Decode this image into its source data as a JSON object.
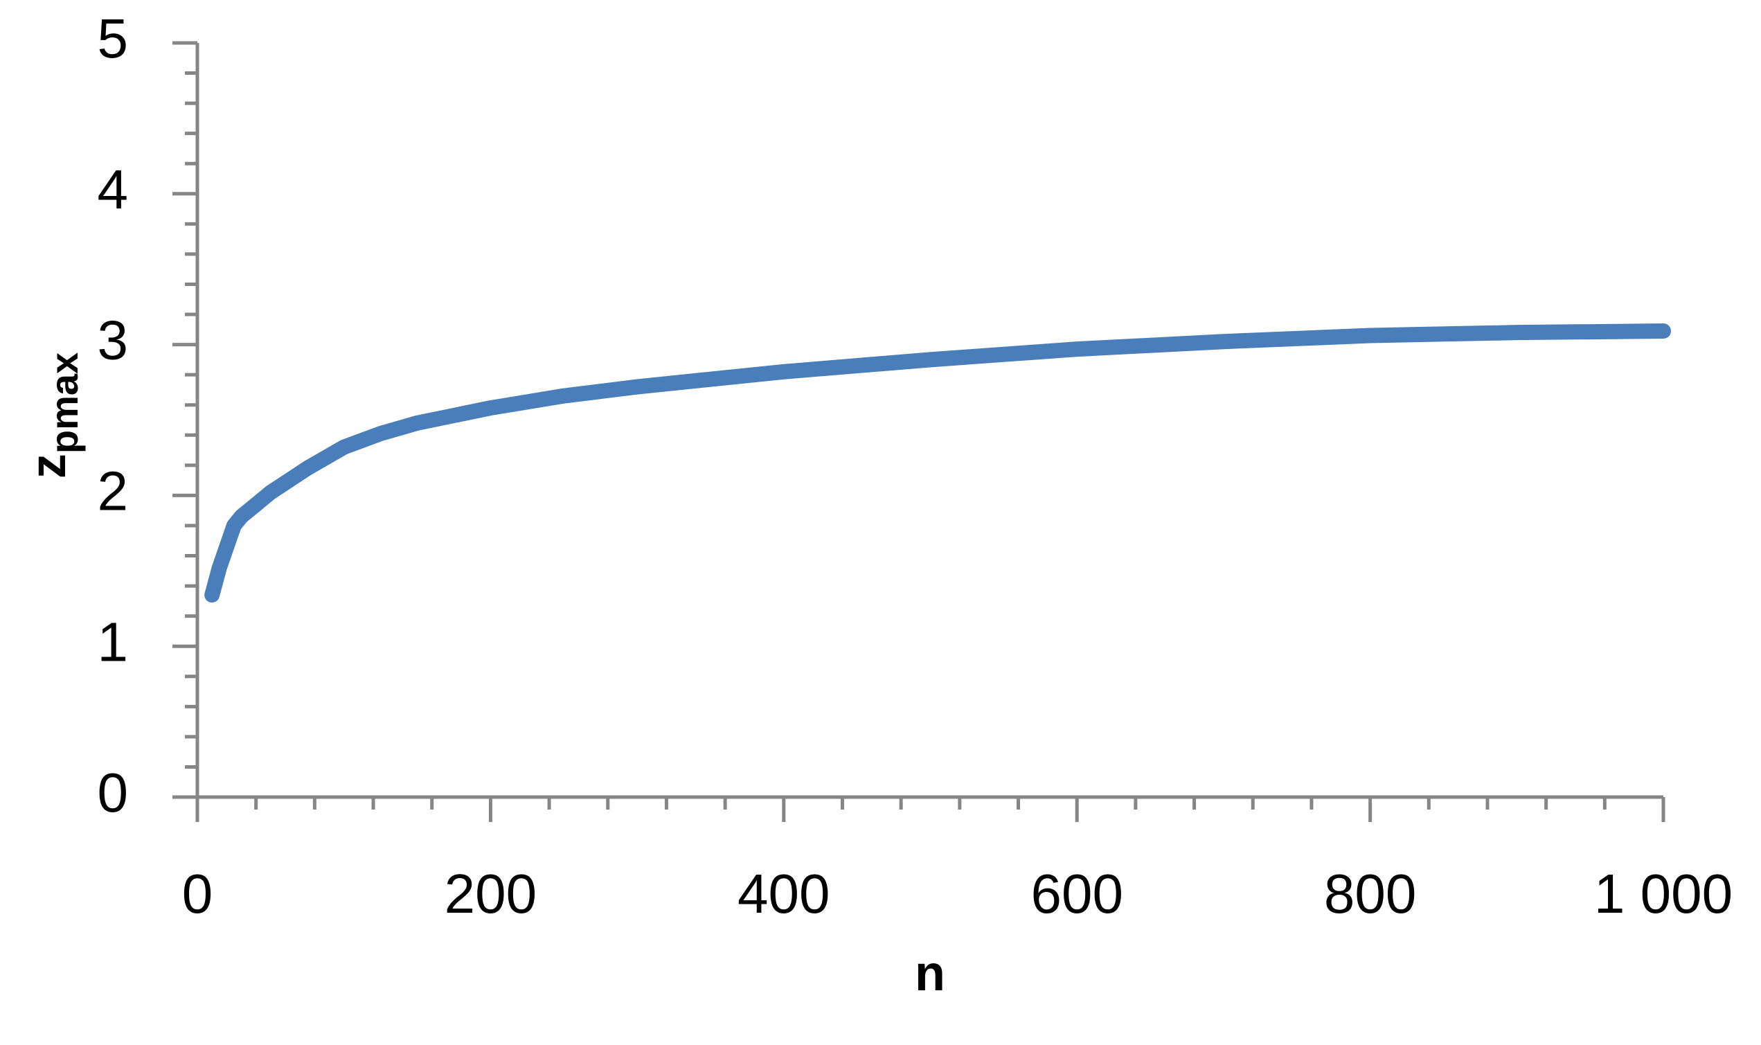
{
  "chart_data": {
    "type": "line",
    "x_label": "n",
    "y_label": "z",
    "y_label_sub": "pmax",
    "x": [
      10,
      15,
      20,
      25,
      30,
      50,
      75,
      100,
      125,
      150,
      200,
      250,
      300,
      400,
      500,
      600,
      700,
      800,
      900,
      1000
    ],
    "series": [
      {
        "color": "#4a7ebb",
        "values": [
          1.34,
          1.52,
          1.66,
          1.8,
          1.86,
          2.02,
          2.18,
          2.32,
          2.41,
          2.48,
          2.58,
          2.66,
          2.72,
          2.82,
          2.9,
          2.97,
          3.02,
          3.06,
          3.08,
          3.09
        ]
      }
    ],
    "xlim": [
      0,
      1000
    ],
    "ylim": [
      0,
      5
    ],
    "xticks": [
      0,
      200,
      400,
      600,
      800,
      {
        "value": 1000,
        "label": "1 000"
      }
    ],
    "yticks": [
      0,
      1,
      2,
      3,
      4,
      5
    ],
    "axis_color": "#868686"
  }
}
